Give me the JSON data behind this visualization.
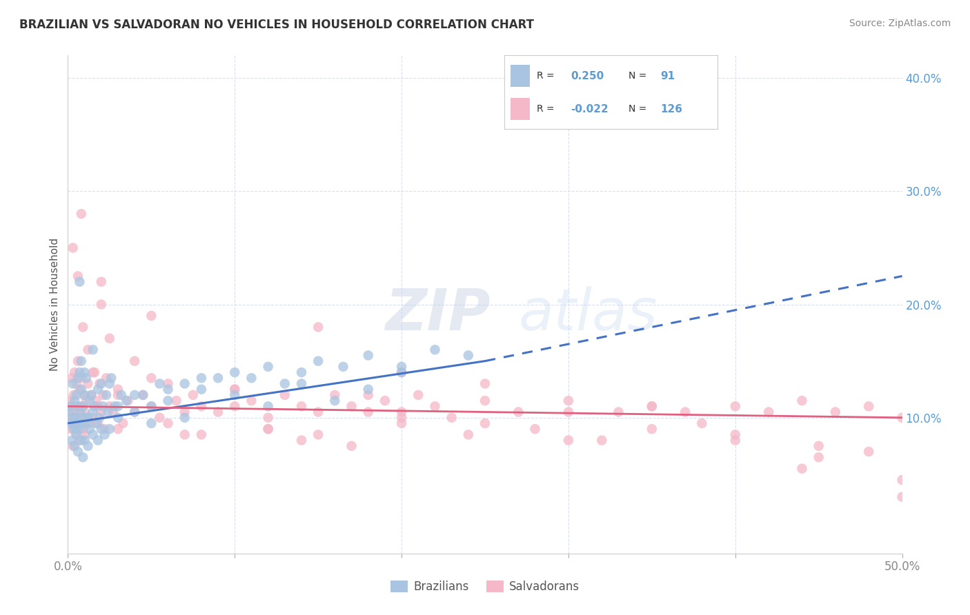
{
  "title": "BRAZILIAN VS SALVADORAN NO VEHICLES IN HOUSEHOLD CORRELATION CHART",
  "source": "Source: ZipAtlas.com",
  "ylabel": "No Vehicles in Household",
  "xlim": [
    0.0,
    50.0
  ],
  "ylim": [
    -2.0,
    42.0
  ],
  "xticks": [
    0.0,
    10.0,
    20.0,
    30.0,
    40.0,
    50.0
  ],
  "yticks_right": [
    10.0,
    20.0,
    30.0,
    40.0
  ],
  "ytick_labels_right": [
    "10.0%",
    "20.0%",
    "30.0%",
    "40.0%"
  ],
  "xtick_labels": [
    "0.0%",
    "",
    "",
    "",
    "",
    "50.0%"
  ],
  "brazilian_color": "#a8c4e0",
  "salvadoran_color": "#f4b8c8",
  "brazilian_line_color": "#4472c4",
  "salvadoran_line_color": "#e06080",
  "legend_r_brazilian": "0.250",
  "legend_n_brazilian": "91",
  "legend_r_salvadoran": "-0.022",
  "legend_n_salvadoran": "126",
  "legend_label_brazilian": "Brazilians",
  "legend_label_salvadoran": "Salvadorans",
  "watermark_zip": "ZIP",
  "watermark_atlas": "atlas",
  "background_color": "#ffffff",
  "grid_color": "#d8dff0",
  "title_color": "#333333",
  "axis_label_color": "#555555",
  "tick_color_right": "#5b9bd5",
  "tick_color_bottom": "#888888",
  "brazilians_x": [
    0.1,
    0.15,
    0.2,
    0.25,
    0.3,
    0.3,
    0.35,
    0.4,
    0.4,
    0.45,
    0.5,
    0.5,
    0.55,
    0.6,
    0.6,
    0.65,
    0.7,
    0.7,
    0.75,
    0.8,
    0.8,
    0.85,
    0.9,
    0.9,
    0.95,
    1.0,
    1.0,
    1.1,
    1.1,
    1.2,
    1.2,
    1.3,
    1.3,
    1.4,
    1.5,
    1.5,
    1.6,
    1.7,
    1.8,
    1.9,
    2.0,
    2.0,
    2.1,
    2.2,
    2.3,
    2.4,
    2.5,
    2.6,
    2.8,
    3.0,
    3.2,
    3.5,
    4.0,
    4.5,
    5.0,
    5.5,
    6.0,
    7.0,
    8.0,
    9.0,
    10.0,
    11.0,
    12.0,
    13.0,
    14.0,
    15.0,
    16.5,
    18.0,
    20.0,
    22.0,
    24.0,
    0.5,
    0.7,
    0.8,
    1.0,
    1.2,
    1.5,
    1.8,
    2.5,
    3.0,
    4.0,
    5.0,
    6.0,
    7.0,
    8.0,
    10.0,
    12.0,
    14.0,
    16.0,
    18.0,
    20.0
  ],
  "brazilians_y": [
    10.5,
    9.5,
    11.0,
    8.0,
    10.0,
    13.0,
    9.0,
    11.5,
    7.5,
    10.0,
    12.0,
    8.5,
    9.5,
    13.5,
    7.0,
    11.0,
    9.0,
    14.0,
    10.5,
    8.0,
    12.5,
    9.5,
    11.0,
    6.5,
    10.0,
    12.0,
    8.0,
    9.5,
    13.5,
    10.0,
    7.5,
    11.5,
    9.0,
    12.0,
    10.5,
    8.5,
    11.0,
    9.5,
    12.5,
    10.0,
    9.0,
    13.0,
    11.0,
    8.5,
    12.0,
    10.5,
    9.0,
    13.5,
    11.0,
    10.0,
    12.0,
    11.5,
    10.5,
    12.0,
    11.0,
    13.0,
    12.5,
    13.0,
    12.5,
    13.5,
    14.0,
    13.5,
    14.5,
    13.0,
    14.0,
    15.0,
    14.5,
    15.5,
    14.5,
    16.0,
    15.5,
    9.0,
    22.0,
    15.0,
    14.0,
    10.0,
    16.0,
    8.0,
    13.0,
    11.0,
    12.0,
    9.5,
    11.5,
    10.0,
    13.5,
    12.0,
    11.0,
    13.0,
    11.5,
    12.5,
    14.0
  ],
  "salvadorans_x": [
    0.1,
    0.15,
    0.2,
    0.25,
    0.3,
    0.3,
    0.35,
    0.4,
    0.4,
    0.45,
    0.5,
    0.5,
    0.55,
    0.6,
    0.6,
    0.65,
    0.7,
    0.7,
    0.75,
    0.8,
    0.85,
    0.9,
    0.95,
    1.0,
    1.0,
    1.1,
    1.2,
    1.3,
    1.4,
    1.5,
    1.6,
    1.7,
    1.8,
    1.9,
    2.0,
    2.1,
    2.2,
    2.3,
    2.5,
    2.7,
    3.0,
    3.3,
    3.6,
    4.0,
    4.5,
    5.0,
    5.5,
    6.0,
    6.5,
    7.0,
    7.5,
    8.0,
    9.0,
    10.0,
    11.0,
    12.0,
    13.0,
    14.0,
    15.0,
    16.0,
    17.0,
    18.0,
    19.0,
    20.0,
    21.0,
    22.0,
    23.0,
    25.0,
    27.0,
    30.0,
    33.0,
    35.0,
    37.0,
    40.0,
    42.0,
    44.0,
    46.0,
    48.0,
    0.3,
    0.6,
    0.9,
    1.2,
    1.5,
    2.0,
    2.5,
    3.0,
    4.0,
    5.0,
    6.0,
    8.0,
    10.0,
    12.0,
    14.0,
    17.0,
    20.0,
    24.0,
    28.0,
    32.0,
    38.0,
    44.0,
    48.0,
    50.0,
    15.0,
    20.0,
    25.0,
    30.0,
    35.0,
    40.0,
    45.0,
    50.0,
    2.0,
    5.0,
    10.0,
    15.0,
    20.0,
    25.0,
    30.0,
    35.0,
    40.0,
    45.0,
    50.0,
    3.0,
    7.0,
    12.0,
    18.0,
    0.8,
    1.8
  ],
  "salvadorans_y": [
    10.0,
    11.5,
    9.0,
    13.5,
    10.5,
    7.5,
    12.0,
    9.5,
    14.0,
    10.0,
    8.5,
    13.0,
    11.0,
    9.5,
    15.0,
    10.5,
    8.0,
    12.5,
    10.0,
    13.5,
    11.0,
    9.0,
    12.0,
    10.5,
    8.5,
    11.5,
    13.0,
    9.5,
    12.0,
    10.0,
    14.0,
    11.5,
    9.5,
    13.0,
    10.5,
    12.0,
    9.0,
    13.5,
    11.0,
    10.5,
    12.5,
    9.5,
    11.5,
    10.5,
    12.0,
    11.0,
    10.0,
    13.0,
    11.5,
    10.5,
    12.0,
    11.0,
    10.5,
    12.5,
    11.5,
    10.0,
    12.0,
    11.0,
    10.5,
    12.0,
    11.0,
    10.5,
    11.5,
    10.5,
    12.0,
    11.0,
    10.0,
    11.5,
    10.5,
    11.5,
    10.5,
    11.0,
    10.5,
    11.0,
    10.5,
    11.5,
    10.5,
    11.0,
    25.0,
    22.5,
    18.0,
    16.0,
    14.0,
    20.0,
    17.0,
    12.0,
    15.0,
    13.5,
    9.5,
    8.5,
    11.0,
    9.0,
    8.0,
    7.5,
    9.5,
    8.5,
    9.0,
    8.0,
    9.5,
    5.5,
    7.0,
    3.0,
    18.0,
    14.0,
    13.0,
    10.5,
    9.0,
    8.5,
    6.5,
    4.5,
    22.0,
    19.0,
    12.5,
    8.5,
    10.0,
    9.5,
    8.0,
    11.0,
    8.0,
    7.5,
    10.0,
    9.0,
    8.5,
    9.0,
    12.0,
    28.0,
    11.0
  ],
  "b_trend_x0": 0.0,
  "b_trend_y0": 9.5,
  "b_trend_x1": 25.0,
  "b_trend_y1": 15.0,
  "b_trend_dashed_x0": 25.0,
  "b_trend_dashed_y0": 15.0,
  "b_trend_dashed_x1": 50.0,
  "b_trend_dashed_y1": 22.5,
  "s_trend_x0": 0.0,
  "s_trend_y0": 11.0,
  "s_trend_x1": 50.0,
  "s_trend_y1": 10.0
}
